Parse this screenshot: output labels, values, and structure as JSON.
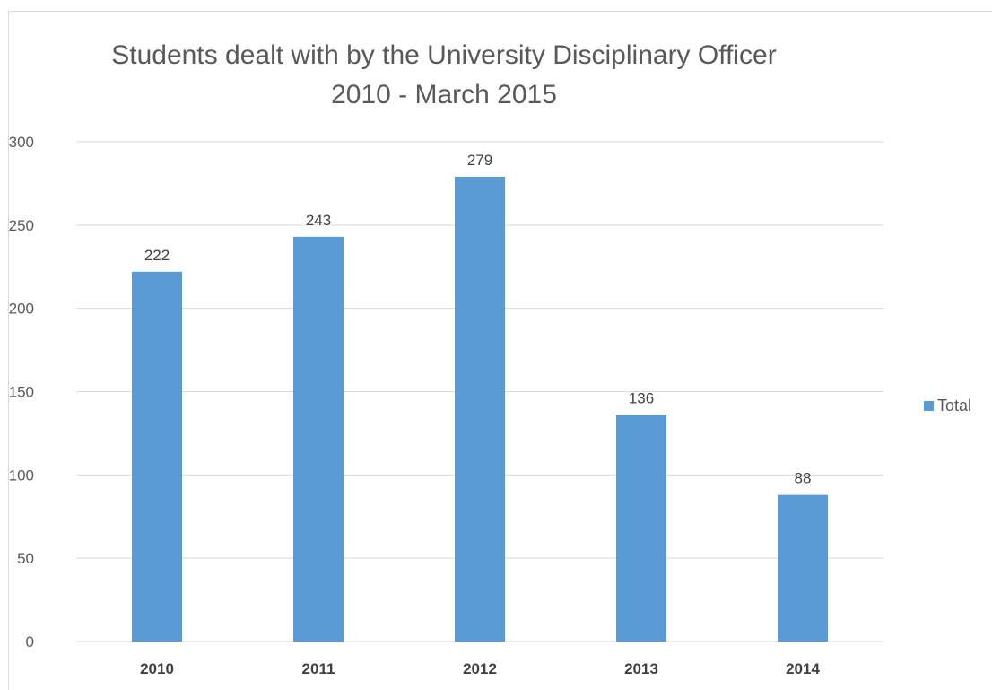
{
  "chart_data": {
    "type": "bar",
    "title_line1": "Students dealt with by the University Disciplinary Officer",
    "title_line2": "2010 - March 2015",
    "categories": [
      "2010",
      "2011",
      "2012",
      "2013",
      "2014"
    ],
    "series": [
      {
        "name": "Total",
        "values": [
          222,
          243,
          279,
          136,
          88
        ],
        "color": "#5b9bd5"
      }
    ],
    "ylim": [
      0,
      300
    ],
    "yticks": [
      0,
      50,
      100,
      150,
      200,
      250,
      300
    ],
    "grid": true,
    "legend_position": "right",
    "data_labels": true
  }
}
